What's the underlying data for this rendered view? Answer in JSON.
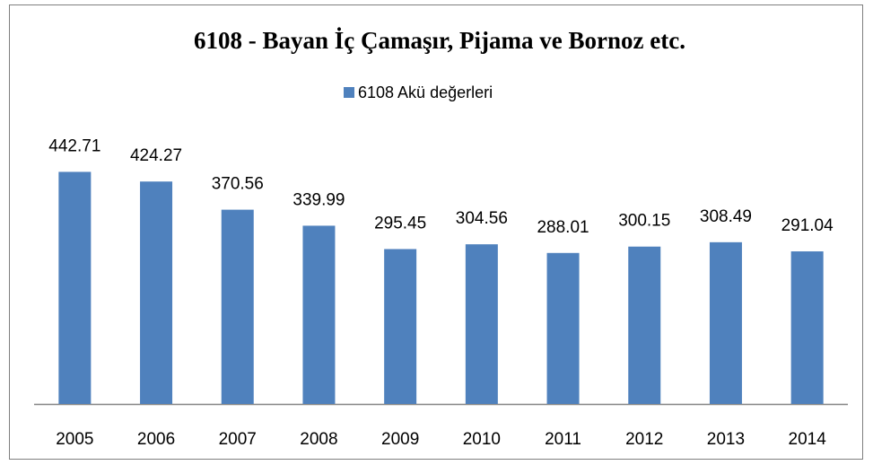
{
  "chart_data": {
    "type": "bar",
    "title": "6108 - Bayan İç Çamaşır, Pijama ve Bornoz etc.",
    "categories": [
      "2005",
      "2006",
      "2007",
      "2008",
      "2009",
      "2010",
      "2011",
      "2012",
      "2013",
      "2014"
    ],
    "series": [
      {
        "name": "6108 Akü değerleri",
        "color": "#4f81bd",
        "values": [
          442.71,
          424.27,
          370.56,
          339.99,
          295.45,
          304.56,
          288.01,
          300.15,
          308.49,
          291.04
        ]
      }
    ],
    "ylim": [
      0,
      500
    ],
    "legend": "top"
  }
}
